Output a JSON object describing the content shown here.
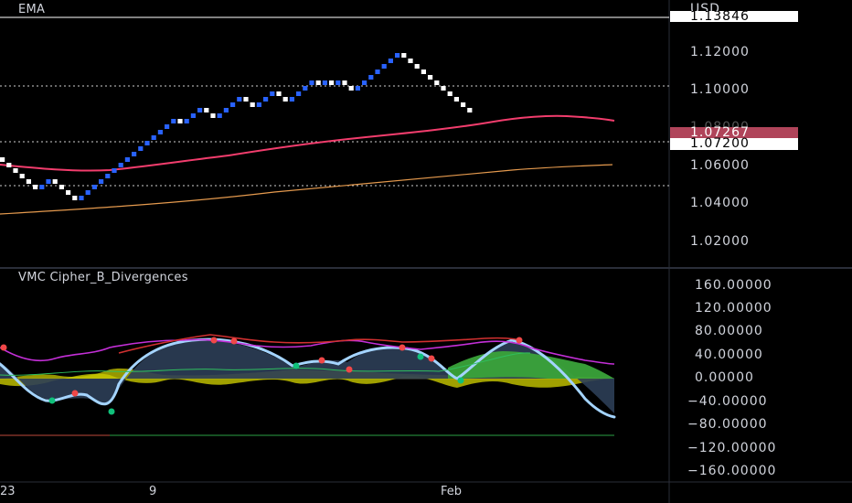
{
  "price_pane": {
    "title": "EMA",
    "currency": "USD",
    "axis_labels": [
      "1.12000",
      "1.10000",
      "1.08000",
      "1.06000",
      "1.04000",
      "1.02000"
    ],
    "top_badge": "1.13846",
    "ema_badge": "1.07267",
    "last_badge": "1.07200",
    "colors": {
      "up_brick": "#2962ff",
      "down_brick": "#ffffff",
      "ema_fast": "#f23d6d",
      "ema_slow": "#e59a4e"
    }
  },
  "osc_pane": {
    "title": "VMC Cipher_B_Divergences",
    "axis_labels": [
      "160.00000",
      "120.00000",
      "80.00000",
      "40.00000",
      "0.00000",
      "−40.00000",
      "−80.00000",
      "−120.00000",
      "−160.00000"
    ],
    "colors": {
      "wave": "#a4d4ff",
      "money_flow": "#e0e000",
      "rsi_line": "#c42fd8",
      "buy_dot": "#10c07a",
      "sell_dot": "#f04848"
    }
  },
  "time_axis": {
    "labels": [
      "23",
      "9",
      "Feb"
    ]
  },
  "chart_data": [
    {
      "type": "line",
      "title": "EMA",
      "series": [],
      "note_axis": "price USD",
      "ylim": [
        1.02,
        1.13846
      ],
      "bricks": [
        -1,
        -1,
        -1,
        -1,
        -1,
        -1,
        1,
        1,
        -1,
        -1,
        -1,
        -1,
        1,
        1,
        1,
        1,
        1,
        1,
        1,
        1,
        1,
        1,
        1,
        1,
        1,
        1,
        1,
        -1,
        1,
        1,
        1,
        -1,
        -1,
        1,
        1,
        1,
        1,
        -1,
        -1,
        1,
        1,
        1,
        -1,
        -1,
        1,
        1,
        1,
        1,
        -1,
        1,
        -1,
        1,
        -1,
        -1,
        1,
        1,
        1,
        1,
        1,
        1,
        1,
        -1,
        -1,
        -1,
        -1,
        -1,
        -1,
        -1,
        -1,
        -1,
        -1,
        -1
      ]
    },
    {
      "type": "area",
      "title": "VMC Cipher_B_Divergences",
      "ylim": [
        -160,
        160
      ]
    }
  ]
}
